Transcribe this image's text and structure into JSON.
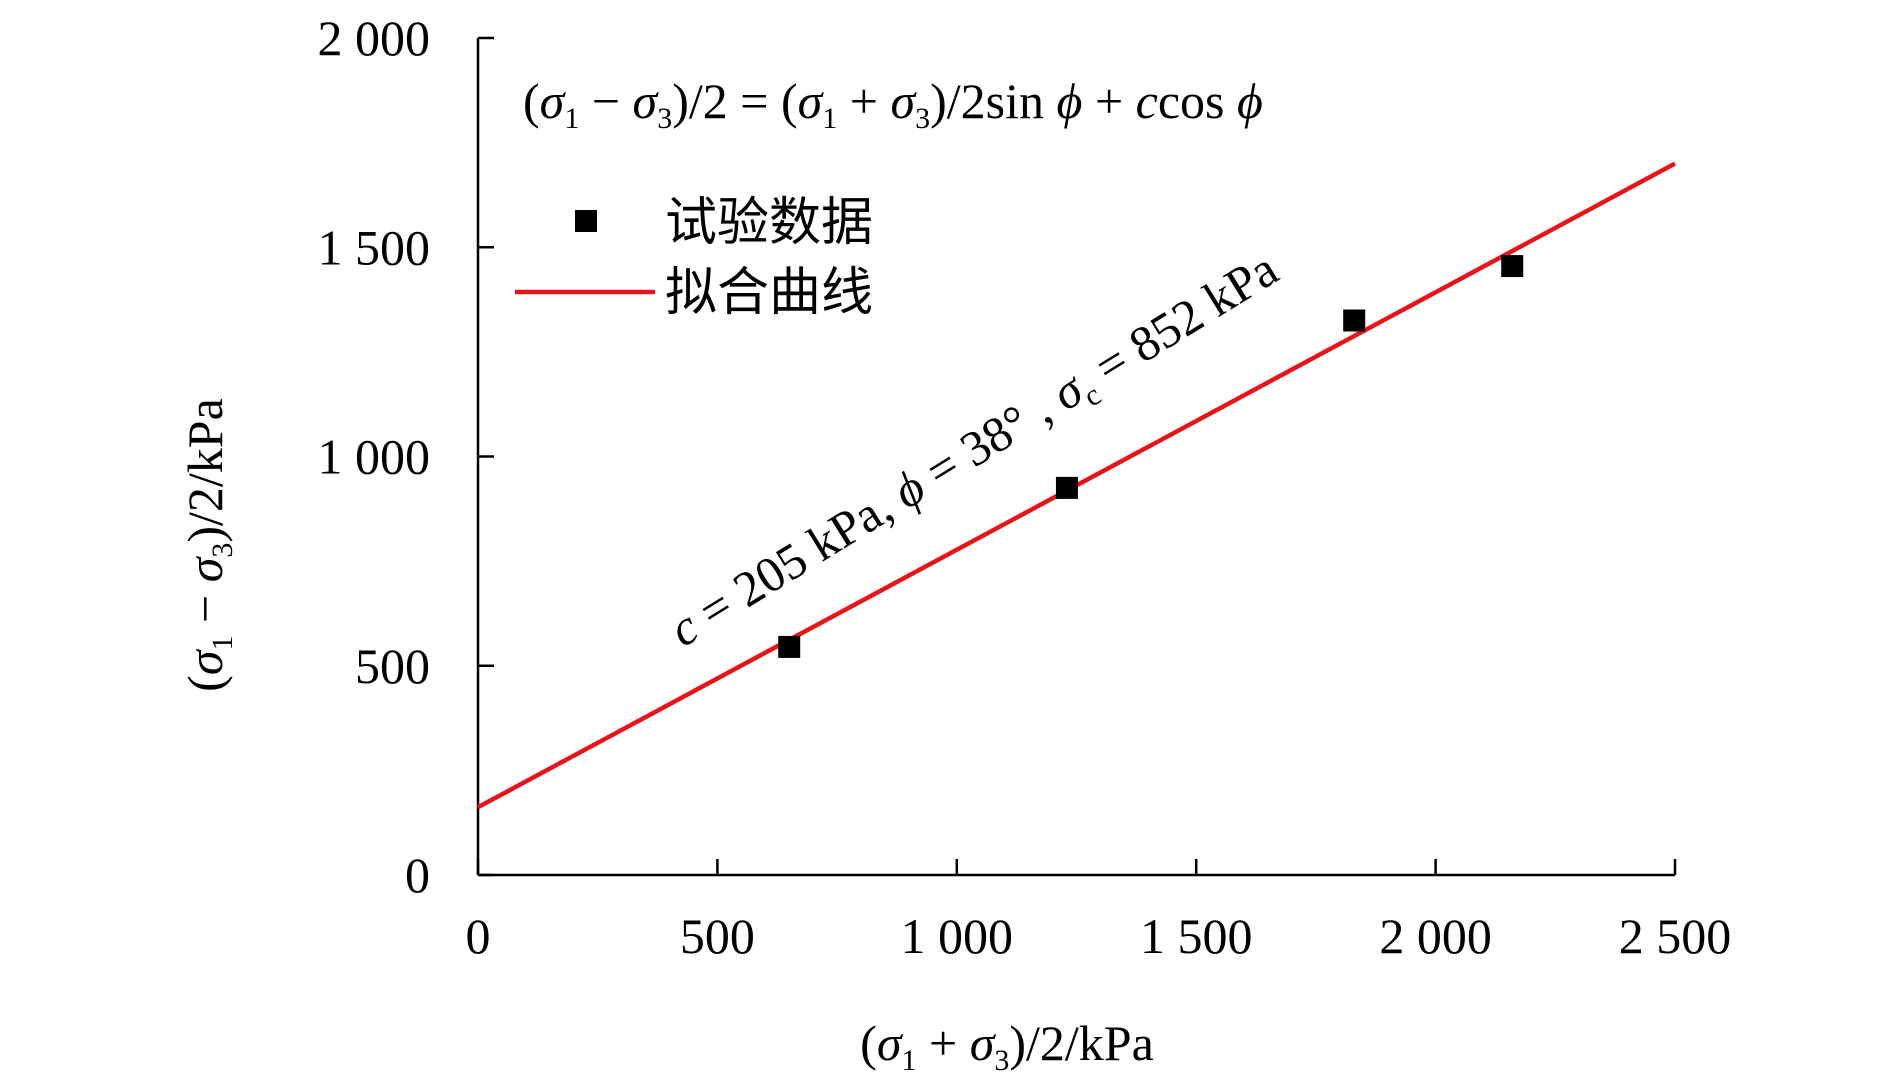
{
  "chart_data": {
    "type": "scatter",
    "title": "",
    "xlabel": {
      "open": "(",
      "sigma1": "σ",
      "sub1": "1",
      "op": " + ",
      "sigma3": "σ",
      "sub3": "3",
      "close": ")/2/kPa"
    },
    "ylabel": {
      "open": "(",
      "sigma1": "σ",
      "sub1": "1",
      "op": " − ",
      "sigma3": "σ",
      "sub3": "3",
      "close": ")/2/kPa"
    },
    "xlim": [
      0,
      2500
    ],
    "ylim": [
      0,
      2000
    ],
    "xticks": [
      0,
      500,
      1000,
      1500,
      2000,
      2500
    ],
    "yticks": [
      0,
      500,
      1000,
      1500,
      2000
    ],
    "xtick_labels": [
      "0",
      "500",
      "1 000",
      "1 500",
      "2 000",
      "2 500"
    ],
    "ytick_labels": [
      "0",
      "500",
      "1 000",
      "1 500",
      "2 000"
    ],
    "series": [
      {
        "name": "试验数据",
        "kind": "scatter",
        "marker": "square",
        "color": "#000000",
        "x": [
          650,
          1230,
          1830,
          2160
        ],
        "y": [
          545,
          925,
          1325,
          1455
        ]
      },
      {
        "name": "拟合曲线",
        "kind": "line",
        "color": "#e8141c",
        "x": [
          0,
          2500
        ],
        "y": [
          162,
          1700
        ]
      }
    ],
    "legend_placement": "top-left",
    "grid": false,
    "equation": {
      "p1": "(",
      "s1": "σ",
      "b1": "1",
      "m1": " − ",
      "s2": "σ",
      "b2": "3",
      "p2": ")/2 = (",
      "s3": "σ",
      "b3": "1",
      "m2": " + ",
      "s4": "σ",
      "b4": "3",
      "p3": ")/2sin ",
      "phi1": "ϕ",
      "m3": " + ",
      "c": "c",
      "cos": "cos ",
      "phi2": "ϕ"
    },
    "fit_annotation": {
      "c": "c",
      "t1": " = 205 kPa, ",
      "phi": "ϕ",
      "t2": " = 38° , ",
      "sigma": "σ",
      "sub": "c",
      "t3": " = 852 kPa"
    }
  }
}
